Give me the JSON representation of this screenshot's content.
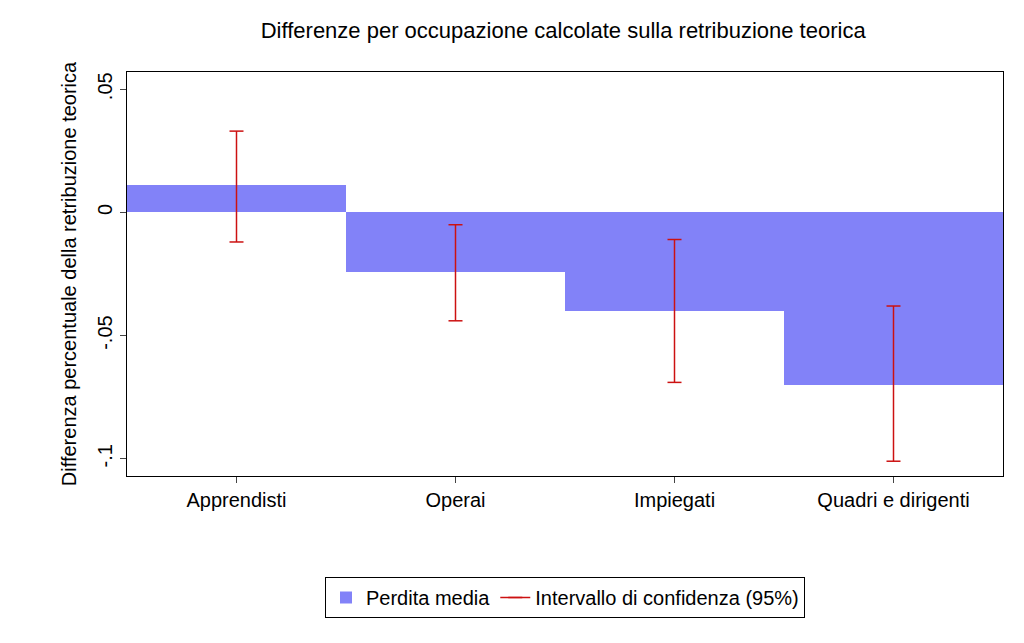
{
  "chart_data": {
    "type": "bar",
    "title": "Differenze per occupazione calcolate sulla retribuzione teorica",
    "y_label": "Differenza percentuale della retribuzione teorica",
    "categories": [
      "Apprendisti",
      "Operai",
      "Impiegati",
      "Quadri e dirigenti"
    ],
    "series": [
      {
        "name": "Perdita media",
        "color": "#8282f8",
        "values": [
          0.011,
          -0.024,
          -0.04,
          -0.07
        ]
      }
    ],
    "error_bars": {
      "name": "Intervallo di confidenza (95%)",
      "color": "#cc1111",
      "low": [
        -0.012,
        -0.044,
        -0.069,
        -0.101
      ],
      "high": [
        0.033,
        -0.005,
        -0.011,
        -0.038
      ]
    },
    "ylim": [
      -0.107,
      0.057
    ],
    "yticks": [
      {
        "value": -0.1,
        "label": "-.1"
      },
      {
        "value": -0.05,
        "label": "-.05"
      },
      {
        "value": 0,
        "label": "0"
      },
      {
        "value": 0.05,
        "label": ".05"
      }
    ],
    "legend": "bottom",
    "grid": false
  }
}
